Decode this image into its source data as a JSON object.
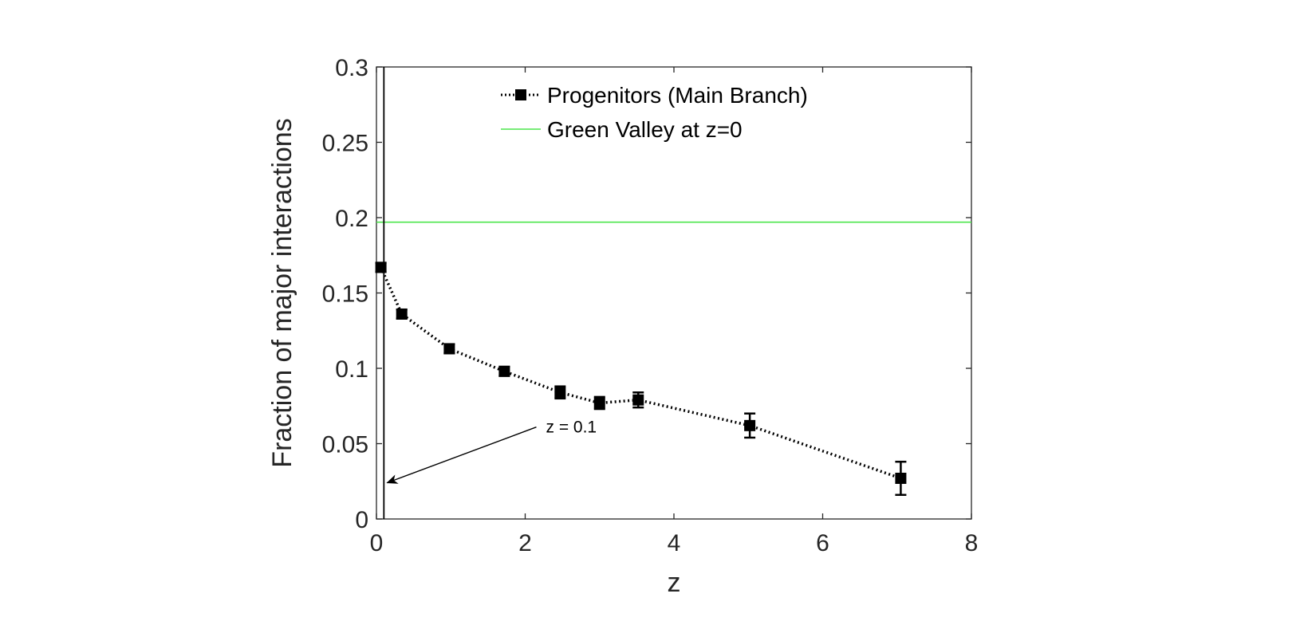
{
  "chart_data": {
    "type": "line",
    "title": "",
    "xlabel": "z",
    "ylabel": "Fraction of major interactions",
    "xlim": [
      0,
      8
    ],
    "ylim": [
      0,
      0.3
    ],
    "x_ticks": [
      0,
      2,
      4,
      6,
      8
    ],
    "x_tick_labels": [
      "0",
      "2",
      "4",
      "6",
      "8"
    ],
    "y_ticks": [
      0,
      0.05,
      0.1,
      0.15,
      0.2,
      0.25,
      0.3
    ],
    "y_tick_labels": [
      "0",
      "0.05",
      "0.1",
      "0.15",
      "0.2",
      "0.25",
      "0.3"
    ],
    "grid": false,
    "legend_position": "top-center",
    "series": [
      {
        "name": "Progenitors (Main Branch)",
        "style": "dotted line with square markers and error bars",
        "color": "#000000",
        "x": [
          0.06,
          0.34,
          0.98,
          1.72,
          2.47,
          3.0,
          3.52,
          5.02,
          7.05
        ],
        "y": [
          0.167,
          0.136,
          0.113,
          0.098,
          0.084,
          0.077,
          0.079,
          0.062,
          0.027
        ],
        "err": [
          0.003,
          0.003,
          0.003,
          0.003,
          0.004,
          0.004,
          0.005,
          0.008,
          0.011
        ]
      },
      {
        "name": "Green Valley at z=0",
        "style": "horizontal solid line",
        "color": "#4ce64c",
        "y": 0.197
      }
    ],
    "annotations": [
      {
        "text": "z = 0.1",
        "vertical_line_x": 0.1,
        "arrow_from": [
          2.15,
          0.061
        ],
        "arrow_to": [
          0.1,
          0.024
        ]
      }
    ]
  }
}
